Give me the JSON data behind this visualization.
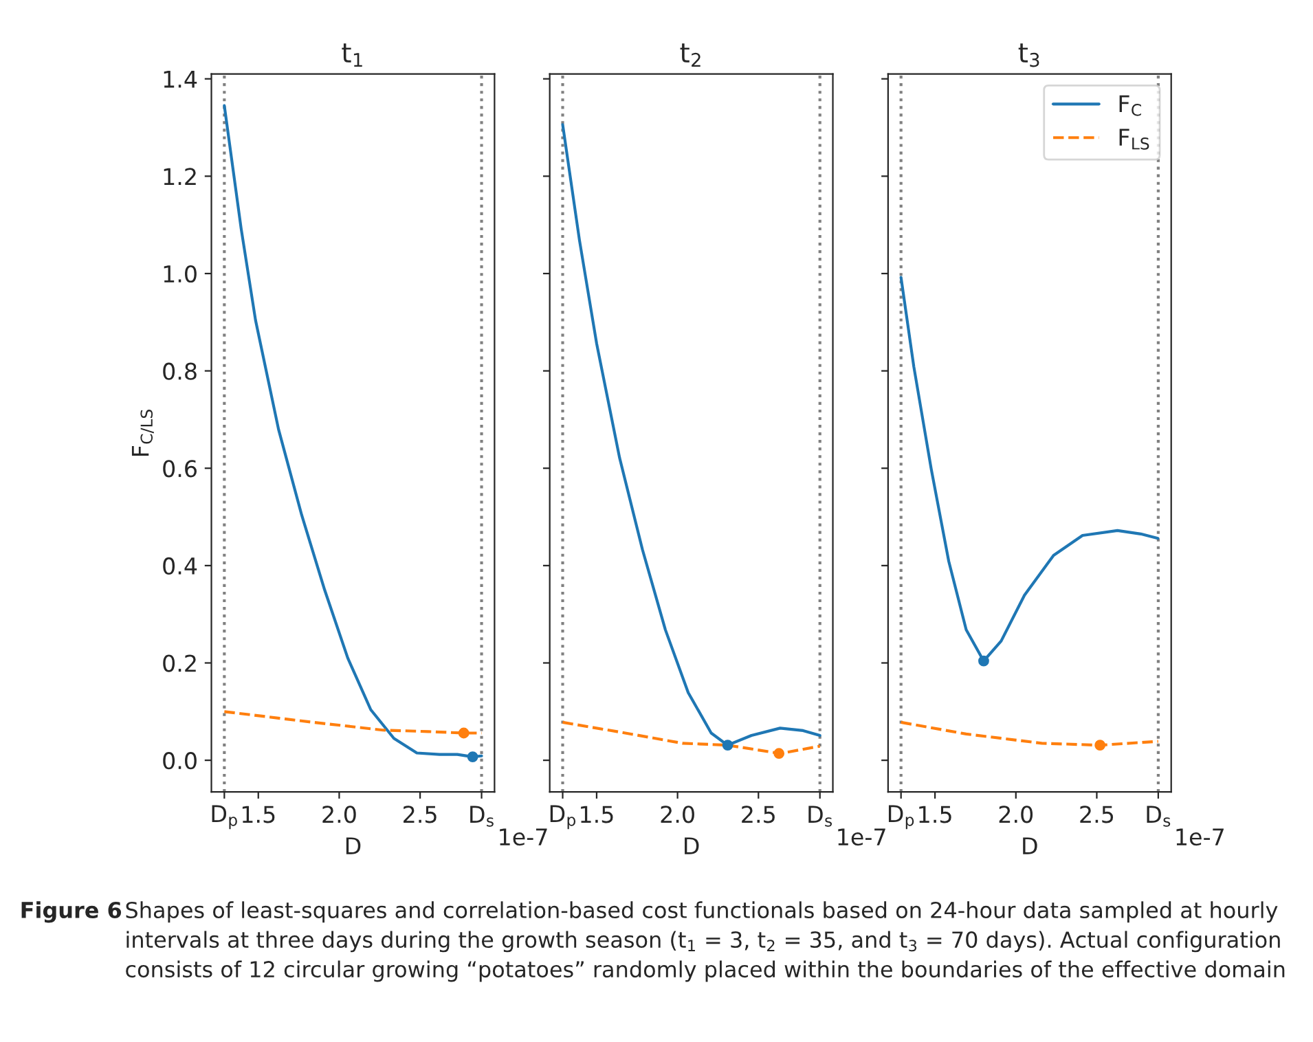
{
  "chart_data": [
    {
      "type": "line",
      "title": "t$_{1}$",
      "xlabel": "D",
      "ylabel": "F$_{C/LS}$",
      "xlim": [
        1.21,
        2.96
      ],
      "ylim": [
        -0.065,
        1.41
      ],
      "xticks": [
        {
          "value": 1.29,
          "label": "D$_{p}$"
        },
        {
          "value": 1.5,
          "label": "1.5"
        },
        {
          "value": 2,
          "label": "2.0"
        },
        {
          "value": 2.5,
          "label": "2.5"
        },
        {
          "value": 2.88,
          "label": "D$_{s}$"
        }
      ],
      "yticks": [
        {
          "value": 0,
          "label": "0.0"
        },
        0.2,
        0.4,
        0.6,
        0.8,
        {
          "value": 1,
          "label": "1.0"
        },
        1.2,
        1.4
      ],
      "ref_lines": [
        {
          "axis": "x",
          "value": 1.29,
          "color": "#808080",
          "line_style": "dotted"
        },
        {
          "axis": "x",
          "value": 2.88,
          "color": "#808080",
          "line_style": "dotted"
        }
      ],
      "series": [
        {
          "color": "#1f77b4",
          "line_style": "solid",
          "x": [
            1.29,
            1.394,
            1.483,
            1.625,
            1.768,
            1.91,
            2.053,
            2.195,
            2.338,
            2.48,
            2.62,
            2.73,
            2.825,
            2.88
          ],
          "values": [
            1.345,
            1.092,
            0.904,
            0.68,
            0.504,
            0.35,
            0.21,
            0.104,
            0.045,
            0.015,
            0.012,
            0.012,
            0.007,
            0.009
          ]
        },
        {
          "color": "#ff7f0e",
          "line_style": "dashed",
          "x": [
            1.29,
            1.84,
            2.27,
            2.55,
            2.77,
            2.88
          ],
          "values": [
            0.1,
            0.078,
            0.062,
            0.059,
            0.056,
            0.056
          ]
        },
        {
          "type": "scatter",
          "color": "#1f77b4",
          "marker": "circle",
          "x": [
            2.825
          ],
          "values": [
            0.007
          ]
        },
        {
          "type": "scatter",
          "color": "#ff7f0e",
          "marker": "circle",
          "x": [
            2.77
          ],
          "values": [
            0.056
          ]
        }
      ],
      "annotations": [
        "1e-7",
        "Figure 6",
        "Shapes of least-squares and correlation-based cost functionals based on 24-hour data sampled at hourly intervals at three days during the growth season (t$_{1}$ = 3, t$_{2}$ = 35, and t$_{3}$ = 70 days). Actual configuration consists of 12 circular growing “potatoes” randomly placed within the boundaries of the effective domain"
      ]
    },
    {
      "type": "line",
      "title": "t$_{2}$",
      "xlabel": "D",
      "tick_labels": "x",
      "xlim": [
        1.21,
        2.96
      ],
      "ylim": [
        -0.065,
        1.41
      ],
      "xticks": [
        {
          "value": 1.29,
          "label": "D$_{p}$"
        },
        {
          "value": 1.5,
          "label": "1.5"
        },
        {
          "value": 2,
          "label": "2.0"
        },
        {
          "value": 2.5,
          "label": "2.5"
        },
        {
          "value": 2.88,
          "label": "D$_{s}$"
        }
      ],
      "yticks": [
        0,
        0.2,
        0.4,
        0.6,
        0.8,
        1,
        1.2,
        1.4
      ],
      "ref_lines": [
        {
          "axis": "x",
          "value": 1.29,
          "color": "#808080",
          "line_style": "dotted"
        },
        {
          "axis": "x",
          "value": 2.88,
          "color": "#808080",
          "line_style": "dotted"
        }
      ],
      "series": [
        {
          "color": "#1f77b4",
          "line_style": "solid",
          "x": [
            1.29,
            1.394,
            1.5,
            1.642,
            1.783,
            1.925,
            2.066,
            2.208,
            2.309,
            2.457,
            2.634,
            2.776,
            2.88
          ],
          "values": [
            1.306,
            1.068,
            0.856,
            0.621,
            0.433,
            0.268,
            0.139,
            0.056,
            0.031,
            0.051,
            0.066,
            0.061,
            0.051
          ]
        },
        {
          "color": "#ff7f0e",
          "line_style": "dashed",
          "x": [
            1.29,
            1.677,
            2.03,
            2.31,
            2.634,
            2.88
          ],
          "values": [
            0.078,
            0.056,
            0.035,
            0.031,
            0.014,
            0.029
          ]
        },
        {
          "type": "scatter",
          "color": "#1f77b4",
          "marker": "circle",
          "x": [
            2.31
          ],
          "values": [
            0.031
          ]
        },
        {
          "type": "scatter",
          "color": "#ff7f0e",
          "marker": "circle",
          "x": [
            2.627
          ],
          "values": [
            0.014
          ]
        }
      ],
      "annotations": [
        "1e-7"
      ]
    },
    {
      "type": "line",
      "title": "t$_{3}$",
      "xlabel": "D",
      "tick_labels": "x",
      "legend": "top right",
      "xlim": [
        1.21,
        2.96
      ],
      "ylim": [
        -0.065,
        1.41
      ],
      "xticks": [
        {
          "value": 1.29,
          "label": "D$_{p}$"
        },
        {
          "value": 1.5,
          "label": "1.5"
        },
        {
          "value": 2,
          "label": "2.0"
        },
        {
          "value": 2.5,
          "label": "2.5"
        },
        {
          "value": 2.88,
          "label": "D$_{s}$"
        }
      ],
      "yticks": [
        0,
        0.2,
        0.4,
        0.6,
        0.8,
        1,
        1.2,
        1.4
      ],
      "ref_lines": [
        {
          "axis": "x",
          "value": 1.29,
          "color": "#808080",
          "line_style": "dotted"
        },
        {
          "axis": "x",
          "value": 2.88,
          "color": "#808080",
          "line_style": "dotted"
        }
      ],
      "series": [
        {
          "name": "F$_{C}$",
          "color": "#1f77b4",
          "line_style": "solid",
          "x": [
            1.29,
            1.369,
            1.477,
            1.585,
            1.693,
            1.801,
            1.909,
            2.053,
            2.233,
            2.412,
            2.628,
            2.772,
            2.878
          ],
          "values": [
            0.992,
            0.809,
            0.598,
            0.409,
            0.268,
            0.204,
            0.245,
            0.339,
            0.421,
            0.462,
            0.472,
            0.465,
            0.456
          ]
        },
        {
          "name": "F$_{LS}$",
          "color": "#ff7f0e",
          "line_style": "dashed",
          "x": [
            1.29,
            1.693,
            2.16,
            2.52,
            2.88
          ],
          "values": [
            0.078,
            0.054,
            0.035,
            0.031,
            0.039
          ]
        },
        {
          "type": "scatter",
          "color": "#1f77b4",
          "marker": "circle",
          "x": [
            1.801
          ],
          "values": [
            0.204
          ]
        },
        {
          "type": "scatter",
          "color": "#ff7f0e",
          "marker": "circle",
          "x": [
            2.52
          ],
          "values": [
            0.031
          ]
        }
      ],
      "annotations": [
        "1e-7"
      ]
    }
  ]
}
